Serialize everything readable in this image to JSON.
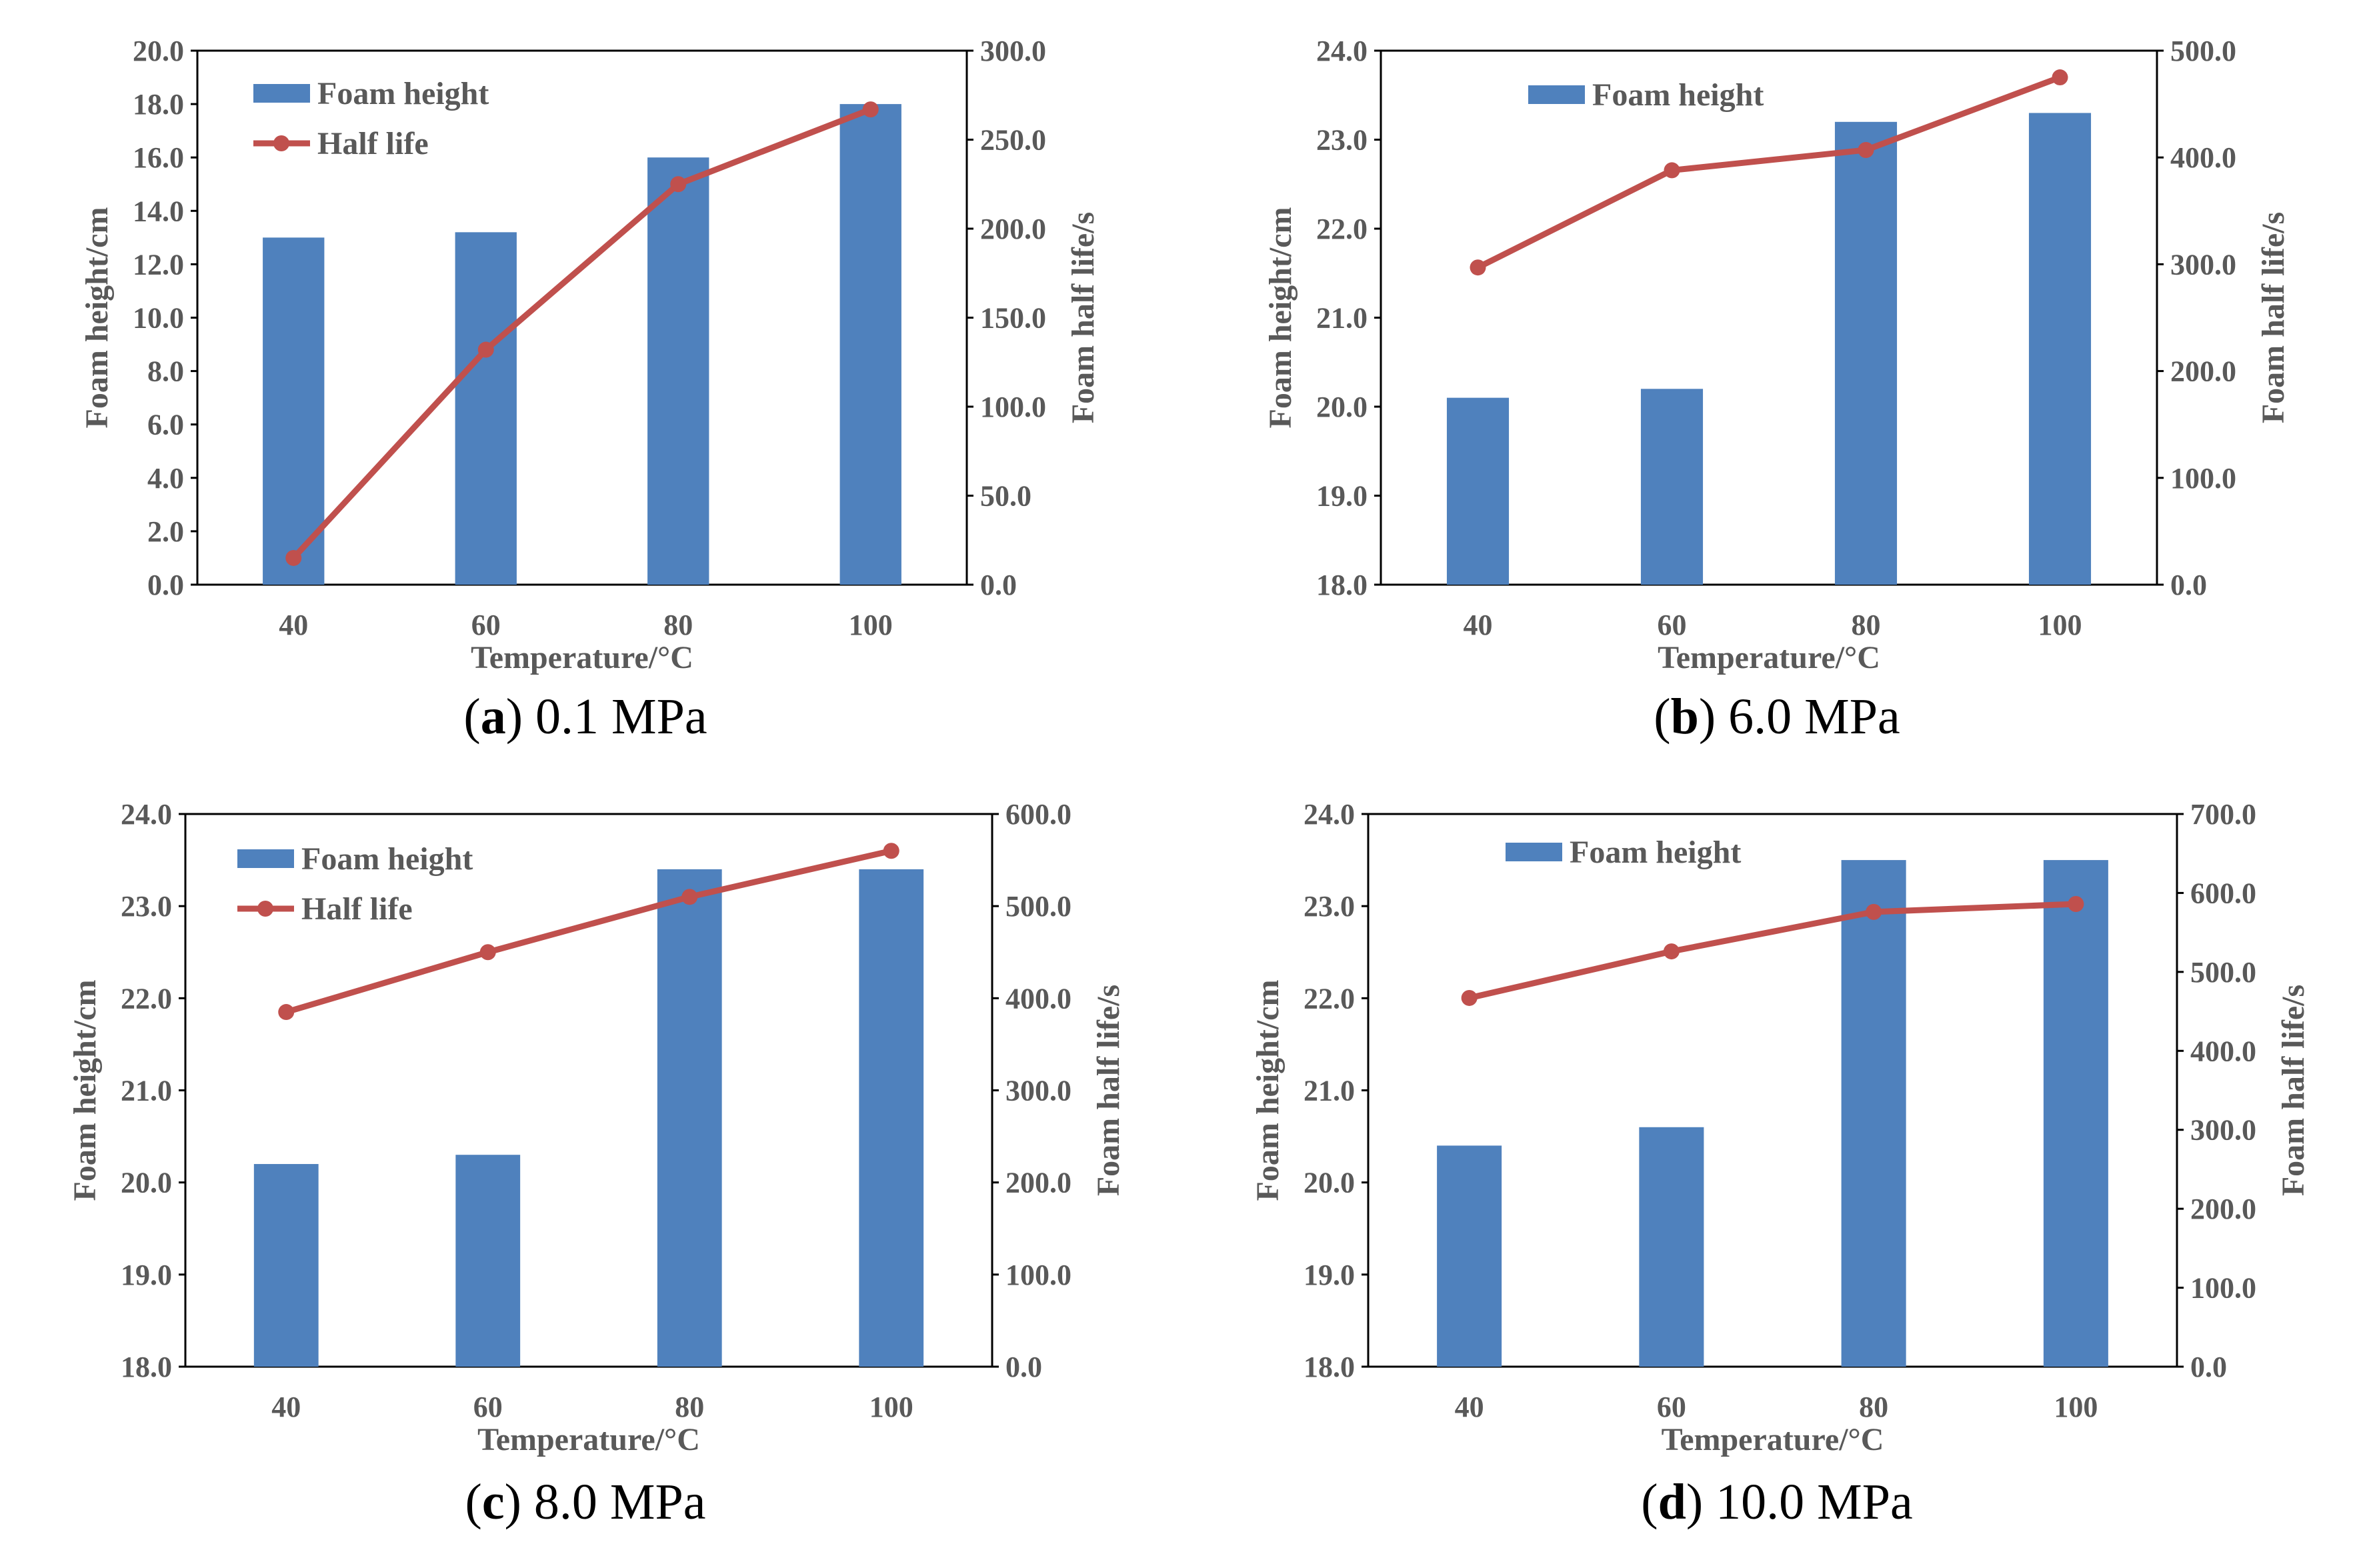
{
  "colors": {
    "bar": "#4f81bd",
    "line": "#c0504d",
    "axis": "#595959"
  },
  "chart_data": [
    {
      "type": "bar",
      "panel_letter": "a",
      "caption": " 0.1 MPa",
      "categories": [
        "40",
        "60",
        "80",
        "100"
      ],
      "xlabel": "Temperature/°C",
      "ylabel": "Foam height/cm",
      "y2label": "Foam half life/s",
      "ylim": [
        0,
        20
      ],
      "ystep": 2,
      "y2lim": [
        0,
        300
      ],
      "y2step": 50,
      "legend": [
        "Foam height",
        "Half life"
      ],
      "series": [
        {
          "name": "Foam height",
          "type": "bar",
          "axis": "left",
          "values": [
            13.0,
            13.2,
            16.0,
            18.0
          ]
        },
        {
          "name": "Half life",
          "type": "line",
          "axis": "right",
          "values": [
            15,
            132,
            225,
            267
          ]
        }
      ]
    },
    {
      "type": "bar",
      "panel_letter": "b",
      "caption": " 6.0 MPa",
      "categories": [
        "40",
        "60",
        "80",
        "100"
      ],
      "xlabel": "Temperature/°C",
      "ylabel": "Foam height/cm",
      "y2label": "Foam half life/s",
      "ylim": [
        18,
        24
      ],
      "ystep": 1,
      "y2lim": [
        0,
        500
      ],
      "y2step": 100,
      "legend": [
        "Foam height"
      ],
      "series": [
        {
          "name": "Foam height",
          "type": "bar",
          "axis": "left",
          "values": [
            20.1,
            20.2,
            23.2,
            23.3
          ]
        },
        {
          "name": "",
          "type": "line",
          "axis": "right",
          "values": [
            297,
            388,
            407,
            475
          ]
        }
      ]
    },
    {
      "type": "bar",
      "panel_letter": "c",
      "caption": " 8.0 MPa",
      "categories": [
        "40",
        "60",
        "80",
        "100"
      ],
      "xlabel": "Temperature/°C",
      "ylabel": "Foam height/cm",
      "y2label": "Foam half life/s",
      "ylim": [
        18,
        24
      ],
      "ystep": 1,
      "y2lim": [
        0,
        600
      ],
      "y2step": 100,
      "legend": [
        "Foam height",
        "Half life"
      ],
      "series": [
        {
          "name": "Foam height",
          "type": "bar",
          "axis": "left",
          "values": [
            20.2,
            20.3,
            23.4,
            23.4
          ]
        },
        {
          "name": "Half life",
          "type": "line",
          "axis": "right",
          "values": [
            385,
            450,
            510,
            560
          ]
        }
      ]
    },
    {
      "type": "bar",
      "panel_letter": "d",
      "caption": " 10.0 MPa",
      "categories": [
        "40",
        "60",
        "80",
        "100"
      ],
      "xlabel": "Temperature/°C",
      "ylabel": "Foam height/cm",
      "y2label": "Foam half life/s",
      "ylim": [
        18,
        24
      ],
      "ystep": 1,
      "y2lim": [
        0,
        700
      ],
      "y2step": 100,
      "legend": [
        "Foam height"
      ],
      "series": [
        {
          "name": "Foam height",
          "type": "bar",
          "axis": "left",
          "values": [
            20.4,
            20.6,
            23.5,
            23.5
          ]
        },
        {
          "name": "",
          "type": "line",
          "axis": "right",
          "values": [
            467,
            526,
            576,
            586
          ]
        }
      ]
    }
  ]
}
